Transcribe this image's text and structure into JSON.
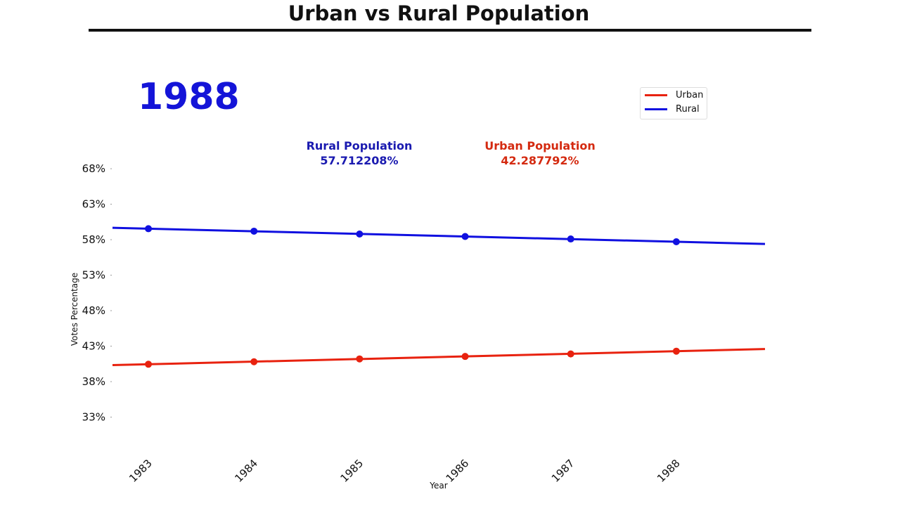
{
  "header": {
    "title": "Urban vs Rural Population"
  },
  "current_year": "1988",
  "annotations": {
    "rural": {
      "label": "Rural Population",
      "value": "57.712208%",
      "color": "#1a1ab0"
    },
    "urban": {
      "label": "Urban Population",
      "value": "42.287792%",
      "color": "#d42a10"
    }
  },
  "chart_data": {
    "type": "line",
    "title": "Urban vs Rural Population",
    "xlabel": "Year",
    "ylabel": "Votes Percentage",
    "x": [
      1983,
      1984,
      1985,
      1986,
      1987,
      1988
    ],
    "x_tick_labels": [
      "1983",
      "1984",
      "1985",
      "1986",
      "1987",
      "1988"
    ],
    "y_ticks": [
      33,
      38,
      43,
      48,
      53,
      58,
      63,
      68
    ],
    "y_tick_labels": [
      "33%",
      "38%",
      "43%",
      "48%",
      "53%",
      "58%",
      "63%",
      "68%"
    ],
    "xlim": [
      1982.66,
      1988.84
    ],
    "ylim": [
      28.2,
      68.7
    ],
    "grid": false,
    "legend": "top-right",
    "series": [
      {
        "name": "Urban",
        "color": "#e8220f",
        "values": [
          40.45,
          40.8,
          41.2,
          41.55,
          41.9,
          42.29
        ]
      },
      {
        "name": "Rural",
        "color": "#1010e0",
        "values": [
          59.55,
          59.2,
          58.8,
          58.45,
          58.1,
          57.71
        ]
      }
    ]
  }
}
